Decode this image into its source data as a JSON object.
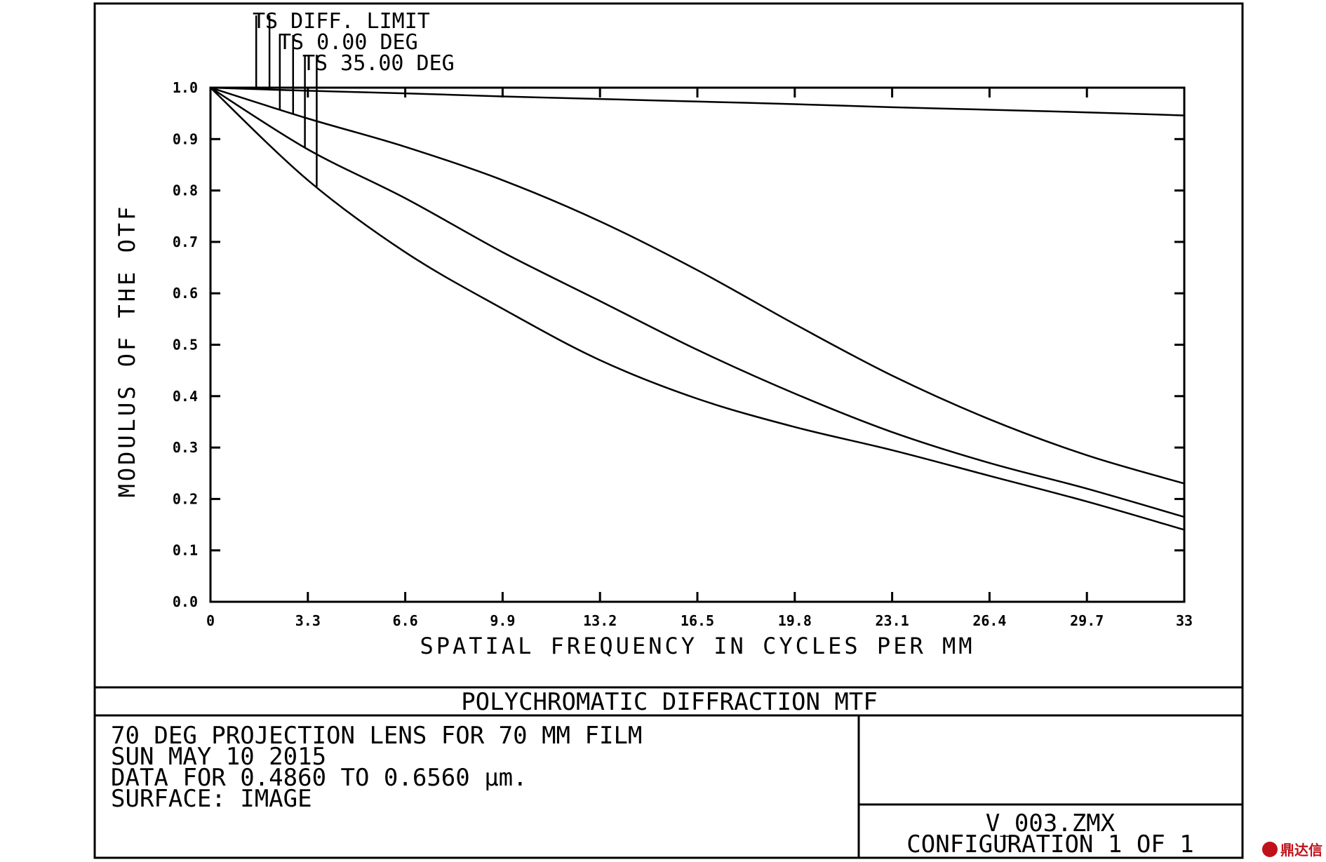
{
  "chart_data": {
    "type": "line",
    "title": "POLYCHROMATIC DIFFRACTION MTF",
    "xlabel": "SPATIAL FREQUENCY IN CYCLES PER MM",
    "ylabel": "MODULUS OF THE OTF",
    "xlim": [
      0,
      33
    ],
    "ylim": [
      0,
      1
    ],
    "x_ticks": [
      "0",
      "3.3",
      "6.6",
      "9.9",
      "13.2",
      "16.5",
      "19.8",
      "23.1",
      "26.4",
      "29.7",
      "33"
    ],
    "y_ticks": [
      "0.0",
      "0.1",
      "0.2",
      "0.3",
      "0.4",
      "0.5",
      "0.6",
      "0.7",
      "0.8",
      "0.9",
      "1.0"
    ],
    "legend": [
      "TS DIFF. LIMIT",
      "TS 0.00 DEG",
      "TS 35.00 DEG"
    ],
    "x": [
      0,
      3.3,
      6.6,
      9.9,
      13.2,
      16.5,
      19.8,
      23.1,
      26.4,
      29.7,
      33
    ],
    "series": [
      {
        "name": "DIFF. LIMIT",
        "values": [
          1.0,
          0.994,
          0.989,
          0.983,
          0.978,
          0.973,
          0.968,
          0.962,
          0.957,
          0.952,
          0.946
        ]
      },
      {
        "name": "0.00 DEG",
        "values": [
          1.0,
          0.94,
          0.885,
          0.82,
          0.74,
          0.645,
          0.54,
          0.44,
          0.355,
          0.285,
          0.23
        ]
      },
      {
        "name": "35.00 DEG T",
        "values": [
          1.0,
          0.88,
          0.785,
          0.68,
          0.585,
          0.49,
          0.405,
          0.33,
          0.27,
          0.22,
          0.165
        ]
      },
      {
        "name": "35.00 DEG S",
        "values": [
          1.0,
          0.82,
          0.68,
          0.57,
          0.47,
          0.395,
          0.34,
          0.295,
          0.245,
          0.195,
          0.14
        ]
      }
    ],
    "grid": false
  },
  "info": {
    "line1": "70 DEG PROJECTION LENS FOR 70 MM FILM",
    "line2": "SUN MAY 10 2015",
    "line3": "DATA FOR 0.4860 TO 0.6560 µm.",
    "line4": "SURFACE: IMAGE",
    "file": "V_003.ZMX",
    "config": "CONFIGURATION 1 OF 1"
  },
  "watermark": {
    "text": "鼎达信"
  }
}
